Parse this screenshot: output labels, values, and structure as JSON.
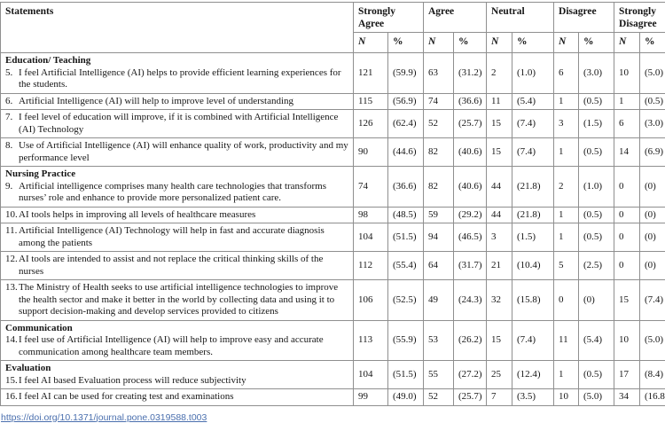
{
  "table": {
    "col_headers": {
      "statements": "Statements",
      "groups": [
        "Strongly Agree",
        "Agree",
        "Neutral",
        "Disagree",
        "Strongly Disagree"
      ],
      "sub_n": "N",
      "sub_pct": "%"
    },
    "sections": [
      {
        "title": "Education/ Teaching",
        "rows": [
          {
            "num": "5.",
            "text": "I feel Artificial Intelligence (AI) helps to provide efficient learning experiences for the students.",
            "values": [
              [
                "121",
                "(59.9)"
              ],
              [
                "63",
                "(31.2)"
              ],
              [
                "2",
                "(1.0)"
              ],
              [
                "6",
                "(3.0)"
              ],
              [
                "10",
                "(5.0)"
              ]
            ]
          },
          {
            "num": "6.",
            "text": "Artificial Intelligence (AI) will help to improve level of understanding",
            "values": [
              [
                "115",
                "(56.9)"
              ],
              [
                "74",
                "(36.6)"
              ],
              [
                "11",
                "(5.4)"
              ],
              [
                "1",
                "(0.5)"
              ],
              [
                "1",
                "(0.5)"
              ]
            ]
          },
          {
            "num": "7.",
            "text": "I feel level of education will improve, if it is combined with Artificial Intelligence (AI) Technology",
            "values": [
              [
                "126",
                "(62.4)"
              ],
              [
                "52",
                "(25.7)"
              ],
              [
                "15",
                "(7.4)"
              ],
              [
                "3",
                "(1.5)"
              ],
              [
                "6",
                "(3.0)"
              ]
            ]
          },
          {
            "num": "8.",
            "text": "Use of Artificial Intelligence (AI) will enhance quality of work, productivity and my performance level",
            "values": [
              [
                "90",
                "(44.6)"
              ],
              [
                "82",
                "(40.6)"
              ],
              [
                "15",
                "(7.4)"
              ],
              [
                "1",
                "(0.5)"
              ],
              [
                "14",
                "(6.9)"
              ]
            ]
          }
        ]
      },
      {
        "title": "Nursing Practice",
        "rows": [
          {
            "num": "9.",
            "text": "Artificial intelligence comprises many health care technologies that transforms nurses’ role and enhance to provide more personalized patient care.",
            "values": [
              [
                "74",
                "(36.6)"
              ],
              [
                "82",
                "(40.6)"
              ],
              [
                "44",
                "(21.8)"
              ],
              [
                "2",
                "(1.0)"
              ],
              [
                "0",
                "(0)"
              ]
            ]
          },
          {
            "num": "10.",
            "text": "AI tools helps in improving all levels of healthcare measures",
            "values": [
              [
                "98",
                "(48.5)"
              ],
              [
                "59",
                "(29.2)"
              ],
              [
                "44",
                "(21.8)"
              ],
              [
                "1",
                "(0.5)"
              ],
              [
                "0",
                "(0)"
              ]
            ]
          },
          {
            "num": "11.",
            "text": "Artificial Intelligence (AI) Technology will help in fast and accurate diagnosis among the patients",
            "values": [
              [
                "104",
                "(51.5)"
              ],
              [
                "94",
                "(46.5)"
              ],
              [
                "3",
                "(1.5)"
              ],
              [
                "1",
                "(0.5)"
              ],
              [
                "0",
                "(0)"
              ]
            ]
          },
          {
            "num": "12.",
            "text": "AI tools are intended to assist and not replace the critical thinking skills of the nurses",
            "values": [
              [
                "112",
                "(55.4)"
              ],
              [
                "64",
                "(31.7)"
              ],
              [
                "21",
                "(10.4)"
              ],
              [
                "5",
                "(2.5)"
              ],
              [
                "0",
                "(0)"
              ]
            ]
          },
          {
            "num": "13.",
            "text": "The Ministry of Health seeks to use artificial intelligence technologies to improve the health sector and make it better in the world by collecting data and using it to support decision-making and develop services provided to citizens",
            "values": [
              [
                "106",
                "(52.5)"
              ],
              [
                "49",
                "(24.3)"
              ],
              [
                "32",
                "(15.8)"
              ],
              [
                "0",
                "(0)"
              ],
              [
                "15",
                "(7.4)"
              ]
            ]
          }
        ]
      },
      {
        "title": "Communication",
        "rows": [
          {
            "num": "14.",
            "text": "I feel use of Artificial Intelligence (AI) will help to improve easy and accurate communication among healthcare team members.",
            "values": [
              [
                "113",
                "(55.9)"
              ],
              [
                "53",
                "(26.2)"
              ],
              [
                "15",
                "(7.4)"
              ],
              [
                "11",
                "(5.4)"
              ],
              [
                "10",
                "(5.0)"
              ]
            ]
          }
        ]
      },
      {
        "title": "Evaluation",
        "rows": [
          {
            "num": "15.",
            "text": "I feel AI based Evaluation process will reduce subjectivity",
            "values": [
              [
                "104",
                "(51.5)"
              ],
              [
                "55",
                "(27.2)"
              ],
              [
                "25",
                "(12.4)"
              ],
              [
                "1",
                "(0.5)"
              ],
              [
                "17",
                "(8.4)"
              ]
            ]
          },
          {
            "num": "16.",
            "text": "I feel AI can be used for creating test and examinations",
            "values": [
              [
                "99",
                "(49.0)"
              ],
              [
                "52",
                "(25.7)"
              ],
              [
                "7",
                "(3.5)"
              ],
              [
                "10",
                "(5.0)"
              ],
              [
                "34",
                "(16.8)"
              ]
            ]
          }
        ]
      }
    ]
  },
  "footer": {
    "doi": "https://doi.org/10.1371/journal.pone.0319588.t003"
  }
}
